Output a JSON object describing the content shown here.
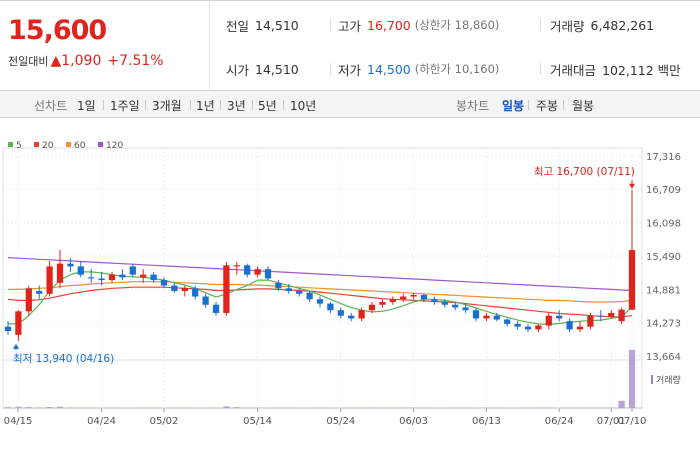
{
  "quote": {
    "price": "15,600",
    "change_label": "전일대비",
    "change_arrow": "▲",
    "change": "1,090",
    "change_pct": "+7.51%"
  },
  "stats": {
    "prev_close_label": "전일",
    "prev_close": "14,510",
    "open_label": "시가",
    "open": "14,510",
    "high_label": "고가",
    "high": "16,700",
    "upper_limit": "(상한가 18,860)",
    "low_label": "저가",
    "low": "14,500",
    "lower_limit": "(하한가 10,160)",
    "volume_label": "거래량",
    "volume": "6,482,261",
    "amount_label": "거래대금",
    "amount": "102,112 백만"
  },
  "toolbar": {
    "line_label": "선차트",
    "periods": [
      "1일",
      "1주일",
      "3개월",
      "1년",
      "3년",
      "5년",
      "10년"
    ],
    "candle_label": "봉차트",
    "candle_periods": [
      "일봉",
      "주봉",
      "월봉"
    ],
    "active_candle": "일봉"
  },
  "colors": {
    "up": "#e0231c",
    "down": "#1a6fd1",
    "ma5": "#5ab552",
    "ma20": "#e8433b",
    "ma60": "#f0902e",
    "ma120": "#9b59c9"
  },
  "chart_data": {
    "type": "candlestick",
    "legend": [
      {
        "name": "5",
        "color": "#5ab552"
      },
      {
        "name": "20",
        "color": "#e8433b"
      },
      {
        "name": "60",
        "color": "#f0902e"
      },
      {
        "name": "120",
        "color": "#9b59c9"
      }
    ],
    "y_ticks": [
      "17,316",
      "16,709",
      "16,098",
      "15,490",
      "14,881",
      "14,273",
      "13,664"
    ],
    "ylim": [
      13664,
      17316
    ],
    "x_ticks": [
      "04/15",
      "04/24",
      "05/02",
      "05/14",
      "05/24",
      "06/03",
      "06/13",
      "06/24",
      "07/01",
      "07/10"
    ],
    "max_annotation": "최고 16,700 (07/11)",
    "min_annotation": "최저 13,940 (04/16)",
    "volume_label": "거래량",
    "candles": [
      {
        "o": 14200,
        "h": 14300,
        "l": 14050,
        "c": 14120
      },
      {
        "o": 14050,
        "h": 14500,
        "l": 13940,
        "c": 14480
      },
      {
        "o": 14480,
        "h": 14950,
        "l": 14400,
        "c": 14900
      },
      {
        "o": 14850,
        "h": 14950,
        "l": 14700,
        "c": 14800
      },
      {
        "o": 14800,
        "h": 15400,
        "l": 14750,
        "c": 15300
      },
      {
        "o": 15000,
        "h": 15600,
        "l": 14900,
        "c": 15350
      },
      {
        "o": 15350,
        "h": 15450,
        "l": 15200,
        "c": 15300
      },
      {
        "o": 15300,
        "h": 15400,
        "l": 15100,
        "c": 15150
      },
      {
        "o": 15100,
        "h": 15250,
        "l": 15000,
        "c": 15080
      },
      {
        "o": 15080,
        "h": 15200,
        "l": 14950,
        "c": 15050
      },
      {
        "o": 15050,
        "h": 15200,
        "l": 15000,
        "c": 15150
      },
      {
        "o": 15150,
        "h": 15250,
        "l": 15050,
        "c": 15100
      },
      {
        "o": 15300,
        "h": 15350,
        "l": 15100,
        "c": 15150
      },
      {
        "o": 15100,
        "h": 15250,
        "l": 15000,
        "c": 15150
      },
      {
        "o": 15150,
        "h": 15200,
        "l": 15000,
        "c": 15050
      },
      {
        "o": 15050,
        "h": 15100,
        "l": 14900,
        "c": 14950
      },
      {
        "o": 14950,
        "h": 15000,
        "l": 14820,
        "c": 14850
      },
      {
        "o": 14850,
        "h": 14950,
        "l": 14750,
        "c": 14900
      },
      {
        "o": 14900,
        "h": 14950,
        "l": 14700,
        "c": 14750
      },
      {
        "o": 14750,
        "h": 14800,
        "l": 14550,
        "c": 14600
      },
      {
        "o": 14600,
        "h": 14650,
        "l": 14400,
        "c": 14450
      },
      {
        "o": 14450,
        "h": 15380,
        "l": 14400,
        "c": 15320
      },
      {
        "o": 15300,
        "h": 15380,
        "l": 15150,
        "c": 15320
      },
      {
        "o": 15320,
        "h": 15350,
        "l": 15100,
        "c": 15150
      },
      {
        "o": 15150,
        "h": 15300,
        "l": 15100,
        "c": 15250
      },
      {
        "o": 15250,
        "h": 15300,
        "l": 15050,
        "c": 15080
      },
      {
        "o": 15000,
        "h": 15050,
        "l": 14850,
        "c": 14900
      },
      {
        "o": 14900,
        "h": 14980,
        "l": 14800,
        "c": 14850
      },
      {
        "o": 14850,
        "h": 14900,
        "l": 14750,
        "c": 14800
      },
      {
        "o": 14820,
        "h": 14850,
        "l": 14650,
        "c": 14700
      },
      {
        "o": 14700,
        "h": 14750,
        "l": 14550,
        "c": 14620
      },
      {
        "o": 14620,
        "h": 14650,
        "l": 14450,
        "c": 14500
      },
      {
        "o": 14500,
        "h": 14550,
        "l": 14350,
        "c": 14400
      },
      {
        "o": 14400,
        "h": 14450,
        "l": 14300,
        "c": 14350
      },
      {
        "o": 14350,
        "h": 14550,
        "l": 14300,
        "c": 14500
      },
      {
        "o": 14500,
        "h": 14650,
        "l": 14450,
        "c": 14600
      },
      {
        "o": 14600,
        "h": 14700,
        "l": 14550,
        "c": 14650
      },
      {
        "o": 14650,
        "h": 14750,
        "l": 14600,
        "c": 14700
      },
      {
        "o": 14700,
        "h": 14800,
        "l": 14650,
        "c": 14750
      },
      {
        "o": 14750,
        "h": 14820,
        "l": 14700,
        "c": 14780
      },
      {
        "o": 14780,
        "h": 14800,
        "l": 14650,
        "c": 14700
      },
      {
        "o": 14700,
        "h": 14750,
        "l": 14600,
        "c": 14650
      },
      {
        "o": 14650,
        "h": 14700,
        "l": 14550,
        "c": 14600
      },
      {
        "o": 14600,
        "h": 14650,
        "l": 14500,
        "c": 14550
      },
      {
        "o": 14550,
        "h": 14600,
        "l": 14450,
        "c": 14500
      },
      {
        "o": 14500,
        "h": 14550,
        "l": 14300,
        "c": 14350
      },
      {
        "o": 14350,
        "h": 14450,
        "l": 14300,
        "c": 14400
      },
      {
        "o": 14400,
        "h": 14450,
        "l": 14300,
        "c": 14330
      },
      {
        "o": 14330,
        "h": 14350,
        "l": 14200,
        "c": 14250
      },
      {
        "o": 14250,
        "h": 14300,
        "l": 14150,
        "c": 14200
      },
      {
        "o": 14200,
        "h": 14250,
        "l": 14100,
        "c": 14150
      },
      {
        "o": 14150,
        "h": 14250,
        "l": 14100,
        "c": 14220
      },
      {
        "o": 14220,
        "h": 14450,
        "l": 14150,
        "c": 14400
      },
      {
        "o": 14400,
        "h": 14500,
        "l": 14300,
        "c": 14350
      },
      {
        "o": 14300,
        "h": 14350,
        "l": 14100,
        "c": 14150
      },
      {
        "o": 14150,
        "h": 14300,
        "l": 14100,
        "c": 14200
      },
      {
        "o": 14200,
        "h": 14450,
        "l": 14150,
        "c": 14400
      },
      {
        "o": 14400,
        "h": 14500,
        "l": 14300,
        "c": 14380
      },
      {
        "o": 14380,
        "h": 14500,
        "l": 14350,
        "c": 14450
      },
      {
        "o": 14300,
        "h": 14550,
        "l": 14250,
        "c": 14510
      },
      {
        "o": 14510,
        "h": 16700,
        "l": 14500,
        "c": 15600
      }
    ],
    "ma5": [
      14250,
      14250,
      14400,
      14600,
      14850,
      15050,
      15150,
      15200,
      15200,
      15180,
      15150,
      15120,
      15110,
      15100,
      15080,
      15050,
      15000,
      14960,
      14900,
      14820,
      14740,
      14800,
      14880,
      14950,
      15050,
      15050,
      15000,
      14950,
      14900,
      14850,
      14780,
      14700,
      14620,
      14550,
      14500,
      14470,
      14480,
      14520,
      14580,
      14650,
      14700,
      14700,
      14680,
      14650,
      14600,
      14540,
      14480,
      14420,
      14370,
      14320,
      14280,
      14250,
      14240,
      14260,
      14280,
      14300,
      14310,
      14320,
      14350,
      14380,
      14560
    ],
    "ma20": [
      14700,
      14680,
      14680,
      14690,
      14720,
      14760,
      14800,
      14830,
      14860,
      14880,
      14900,
      14910,
      14920,
      14920,
      14920,
      14920,
      14910,
      14900,
      14890,
      14880,
      14860,
      14860,
      14870,
      14880,
      14890,
      14890,
      14880,
      14870,
      14860,
      14850,
      14830,
      14810,
      14790,
      14770,
      14750,
      14730,
      14710,
      14700,
      14690,
      14680,
      14670,
      14660,
      14650,
      14640,
      14620,
      14600,
      14580,
      14560,
      14540,
      14520,
      14500,
      14480,
      14460,
      14440,
      14430,
      14420,
      14400,
      14390,
      14380,
      14380,
      14400
    ],
    "ma60": [
      14880,
      14880,
      14890,
      14900,
      14910,
      14930,
      14950,
      14960,
      14980,
      14990,
      15000,
      15010,
      15020,
      15020,
      15020,
      15020,
      15010,
      15000,
      14990,
      14980,
      14970,
      14970,
      14970,
      14960,
      14960,
      14950,
      14940,
      14930,
      14920,
      14910,
      14900,
      14890,
      14880,
      14870,
      14860,
      14850,
      14840,
      14830,
      14820,
      14810,
      14800,
      14790,
      14780,
      14770,
      14760,
      14750,
      14740,
      14730,
      14720,
      14710,
      14700,
      14690,
      14680,
      14680,
      14670,
      14660,
      14650,
      14650,
      14650,
      14660,
      14680
    ],
    "ma120": [
      15460,
      15450,
      15440,
      15430,
      15420,
      15410,
      15400,
      15390,
      15380,
      15370,
      15360,
      15350,
      15340,
      15330,
      15320,
      15310,
      15300,
      15290,
      15280,
      15270,
      15260,
      15250,
      15240,
      15230,
      15220,
      15210,
      15200,
      15190,
      15180,
      15170,
      15160,
      15150,
      15140,
      15130,
      15120,
      15110,
      15100,
      15090,
      15080,
      15070,
      15060,
      15050,
      15040,
      15030,
      15020,
      15010,
      15000,
      14990,
      14980,
      14970,
      14960,
      14950,
      14940,
      14930,
      14920,
      14910,
      14900,
      14890,
      14880,
      14870,
      14860
    ],
    "volumes": [
      120000,
      150000,
      100000,
      90000,
      110000,
      140000,
      80000,
      70000,
      60000,
      50000,
      40000,
      45000,
      50000,
      40000,
      35000,
      30000,
      30000,
      28000,
      25000,
      30000,
      35000,
      180000,
      90000,
      60000,
      50000,
      40000,
      35000,
      30000,
      30000,
      28000,
      26000,
      25000,
      24000,
      22000,
      22000,
      24000,
      26000,
      28000,
      30000,
      30000,
      28000,
      26000,
      25000,
      24000,
      22000,
      22000,
      20000,
      20000,
      20000,
      18000,
      18000,
      18000,
      20000,
      20000,
      22000,
      22000,
      25000,
      30000,
      35000,
      800000,
      6482261
    ]
  }
}
